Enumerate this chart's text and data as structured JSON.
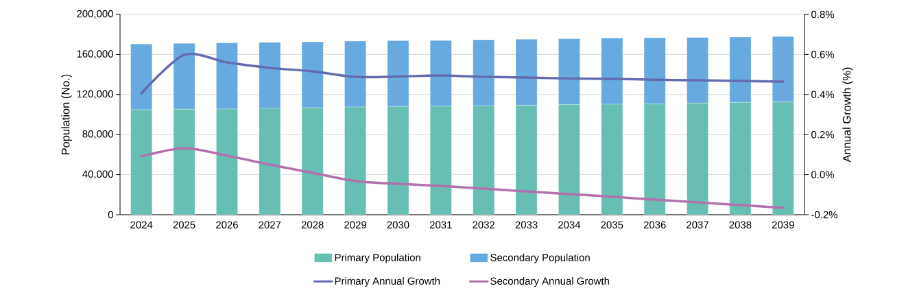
{
  "chart_data": {
    "type": "bar",
    "stacked": true,
    "ylabel": "Population (No.)",
    "y2label": "Annual Growth (%)",
    "categories": [
      "2024",
      "2025",
      "2026",
      "2027",
      "2028",
      "2029",
      "2030",
      "2031",
      "2032",
      "2033",
      "2034",
      "2035",
      "2036",
      "2037",
      "2038",
      "2039"
    ],
    "series": [
      {
        "name": "Primary Population",
        "color": "#67bfb3",
        "values": [
          104800,
          105300,
          105500,
          106200,
          106800,
          107500,
          108000,
          108400,
          108900,
          109300,
          110000,
          110300,
          110700,
          111400,
          112100,
          112500
        ]
      },
      {
        "name": "Secondary Population",
        "color": "#67aadf",
        "values": [
          65600,
          65700,
          66000,
          65900,
          65800,
          65800,
          65800,
          65600,
          65800,
          65900,
          65600,
          66000,
          66000,
          65500,
          65300,
          65400
        ]
      },
      {
        "name": "Primary Annual Growth",
        "type": "line",
        "axis": "y2",
        "color": "#646cb0",
        "values": [
          0.406,
          0.598,
          0.56,
          0.533,
          0.516,
          0.488,
          0.49,
          0.495,
          0.488,
          0.485,
          0.48,
          0.478,
          0.474,
          0.471,
          0.468,
          0.464
        ]
      },
      {
        "name": "Secondary Annual Growth",
        "type": "line",
        "axis": "y2",
        "color": "#b272ab",
        "values": [
          0.091,
          0.132,
          0.095,
          0.05,
          0.009,
          -0.032,
          -0.046,
          -0.056,
          -0.07,
          -0.084,
          -0.097,
          -0.11,
          -0.125,
          -0.138,
          -0.152,
          -0.166
        ]
      }
    ],
    "ylim": [
      0,
      200000
    ],
    "yticks": [
      {
        "value": 0,
        "label": "0"
      },
      {
        "value": 40000,
        "label": "40,000"
      },
      {
        "value": 80000,
        "label": "80,000"
      },
      {
        "value": 120000,
        "label": "120,000"
      },
      {
        "value": 160000,
        "label": "160,000"
      },
      {
        "value": 200000,
        "label": "200,000"
      }
    ],
    "y2lim": [
      -0.2,
      0.8
    ],
    "y2ticks": [
      {
        "value": -0.2,
        "label": "-0.2%"
      },
      {
        "value": 0,
        "label": "0.0%"
      },
      {
        "value": 0.2,
        "label": "0.2%"
      },
      {
        "value": 0.4,
        "label": "0.4%"
      },
      {
        "value": 0.6,
        "label": "0.6%"
      },
      {
        "value": 0.8,
        "label": "0.8%"
      }
    ],
    "grid": "y",
    "legend": "bottom",
    "line_style": "solid",
    "marker": "none"
  }
}
